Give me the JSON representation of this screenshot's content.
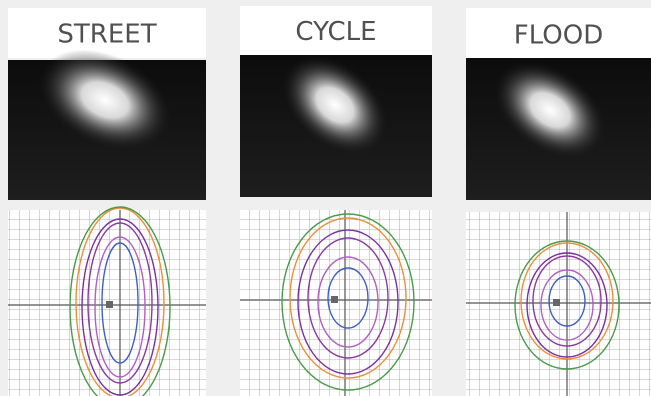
{
  "panels": [
    {
      "label": "STREET"
    },
    {
      "label": "CYCLE"
    },
    {
      "label": "FLOOD"
    }
  ]
}
